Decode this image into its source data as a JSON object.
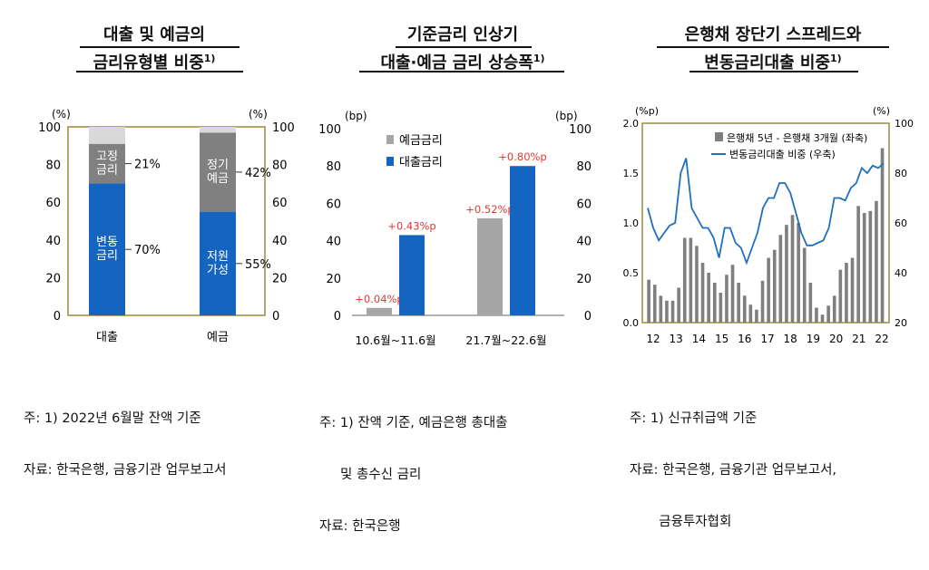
{
  "panels": [
    {
      "title_line1": "대출 및 예금의",
      "title_line2": "금리유형별 비중",
      "title_sup": "1)",
      "notes": [
        "주: 1) 2022년 6월말 잔액 기준",
        "자료: 한국은행, 금융기관 업무보고서"
      ]
    },
    {
      "title_line1": "기준금리 인상기",
      "title_line2": "대출·예금 금리 상승폭",
      "title_sup": "1)",
      "notes": [
        "주: 1) 잔액 기준, 예금은행 총대출",
        "     및 총수신 금리",
        "자료: 한국은행"
      ]
    },
    {
      "title_line1": "은행채 장단기 스프레드와",
      "title_line2": "변동금리대출 비중",
      "title_sup": "1)",
      "notes": [
        "주: 1) 신규취급액 기준",
        "자료: 한국은행, 금융기관 업무보고서,",
        "       금융투자협회"
      ]
    }
  ],
  "chart_data": [
    {
      "type": "bar",
      "stacked": true,
      "categories": [
        "대출",
        "예금"
      ],
      "unit_left": "(%)",
      "unit_right": "(%)",
      "ylim": [
        0,
        100
      ],
      "yticks": [
        0,
        20,
        40,
        60,
        80,
        100
      ],
      "stacks": [
        {
          "category": "대출",
          "segments": [
            {
              "label": "변동\n금리",
              "value": 70,
              "pct_label": "70%",
              "color": "#1565c0"
            },
            {
              "label": "고정\n금리",
              "value": 21,
              "pct_label": "21%",
              "color": "#808080"
            },
            {
              "label": "",
              "value": 9,
              "pct_label": "",
              "color": "#d9d9d9"
            }
          ]
        },
        {
          "category": "예금",
          "segments": [
            {
              "label": "저원\n가성",
              "value": 55,
              "pct_label": "55%",
              "color": "#1565c0"
            },
            {
              "label": "정기\n예금",
              "value": 42,
              "pct_label": "42%",
              "color": "#808080"
            },
            {
              "label": "",
              "value": 3,
              "pct_label": "",
              "color": "#d9d9d9"
            }
          ]
        }
      ]
    },
    {
      "type": "bar",
      "categories": [
        "10.6월~11.6월",
        "21.7월~22.6월"
      ],
      "unit_left": "(bp)",
      "unit_right": "(bp)",
      "ylim": [
        0,
        100
      ],
      "yticks": [
        0,
        20,
        40,
        60,
        80,
        100
      ],
      "series": [
        {
          "name": "예금금리",
          "values": [
            4,
            52
          ],
          "labels": [
            "+0.04%p",
            "+0.52%p"
          ],
          "color": "#a6a6a6"
        },
        {
          "name": "대출금리",
          "values": [
            43,
            80
          ],
          "labels": [
            "+0.43%p",
            "+0.80%p"
          ],
          "color": "#1565c0"
        }
      ],
      "label_color": "#e53935",
      "legend_position": "top-left"
    },
    {
      "type": "bar-line",
      "unit_left": "(%p)",
      "unit_right": "(%)",
      "y_left_lim": [
        0.0,
        2.0
      ],
      "y_left_ticks": [
        "0.0",
        "0.5",
        "1.0",
        "1.5",
        "2.0"
      ],
      "y_right_lim": [
        20,
        100
      ],
      "y_right_ticks": [
        20,
        40,
        60,
        80,
        100
      ],
      "x_tick_labels": [
        "12",
        "13",
        "14",
        "15",
        "16",
        "17",
        "18",
        "19",
        "20",
        "21",
        "22"
      ],
      "x_start": 2012.0,
      "x_step": 0.1667,
      "series": [
        {
          "name": "은행채 5년 - 은행채 3개월 (좌축)",
          "kind": "bar",
          "axis": "left",
          "color": "#7f7f7f",
          "values": [
            0.43,
            0.38,
            0.27,
            0.22,
            0.22,
            0.35,
            0.85,
            0.85,
            0.77,
            0.6,
            0.5,
            0.4,
            0.3,
            0.48,
            0.58,
            0.4,
            0.27,
            0.18,
            0.13,
            0.42,
            0.65,
            0.73,
            0.88,
            0.98,
            1.08,
            1.0,
            0.75,
            0.4,
            0.15,
            0.08,
            0.17,
            0.27,
            0.53,
            0.6,
            0.65,
            1.17,
            1.1,
            1.12,
            1.22,
            1.75
          ]
        },
        {
          "name": "변동금리대출 비중 (우축)",
          "kind": "line",
          "axis": "right",
          "color": "#1f6fbf",
          "values": [
            66,
            58,
            53,
            56,
            59,
            60,
            80,
            86,
            66,
            62,
            58,
            58,
            54,
            46,
            58,
            58,
            52,
            50,
            44,
            50,
            56,
            66,
            70,
            70,
            76,
            76,
            72,
            64,
            56,
            51,
            51,
            52,
            53,
            58,
            70,
            70,
            69,
            74,
            76,
            82,
            80,
            83,
            82,
            84
          ]
        }
      ],
      "legend_position": "top-left"
    }
  ]
}
